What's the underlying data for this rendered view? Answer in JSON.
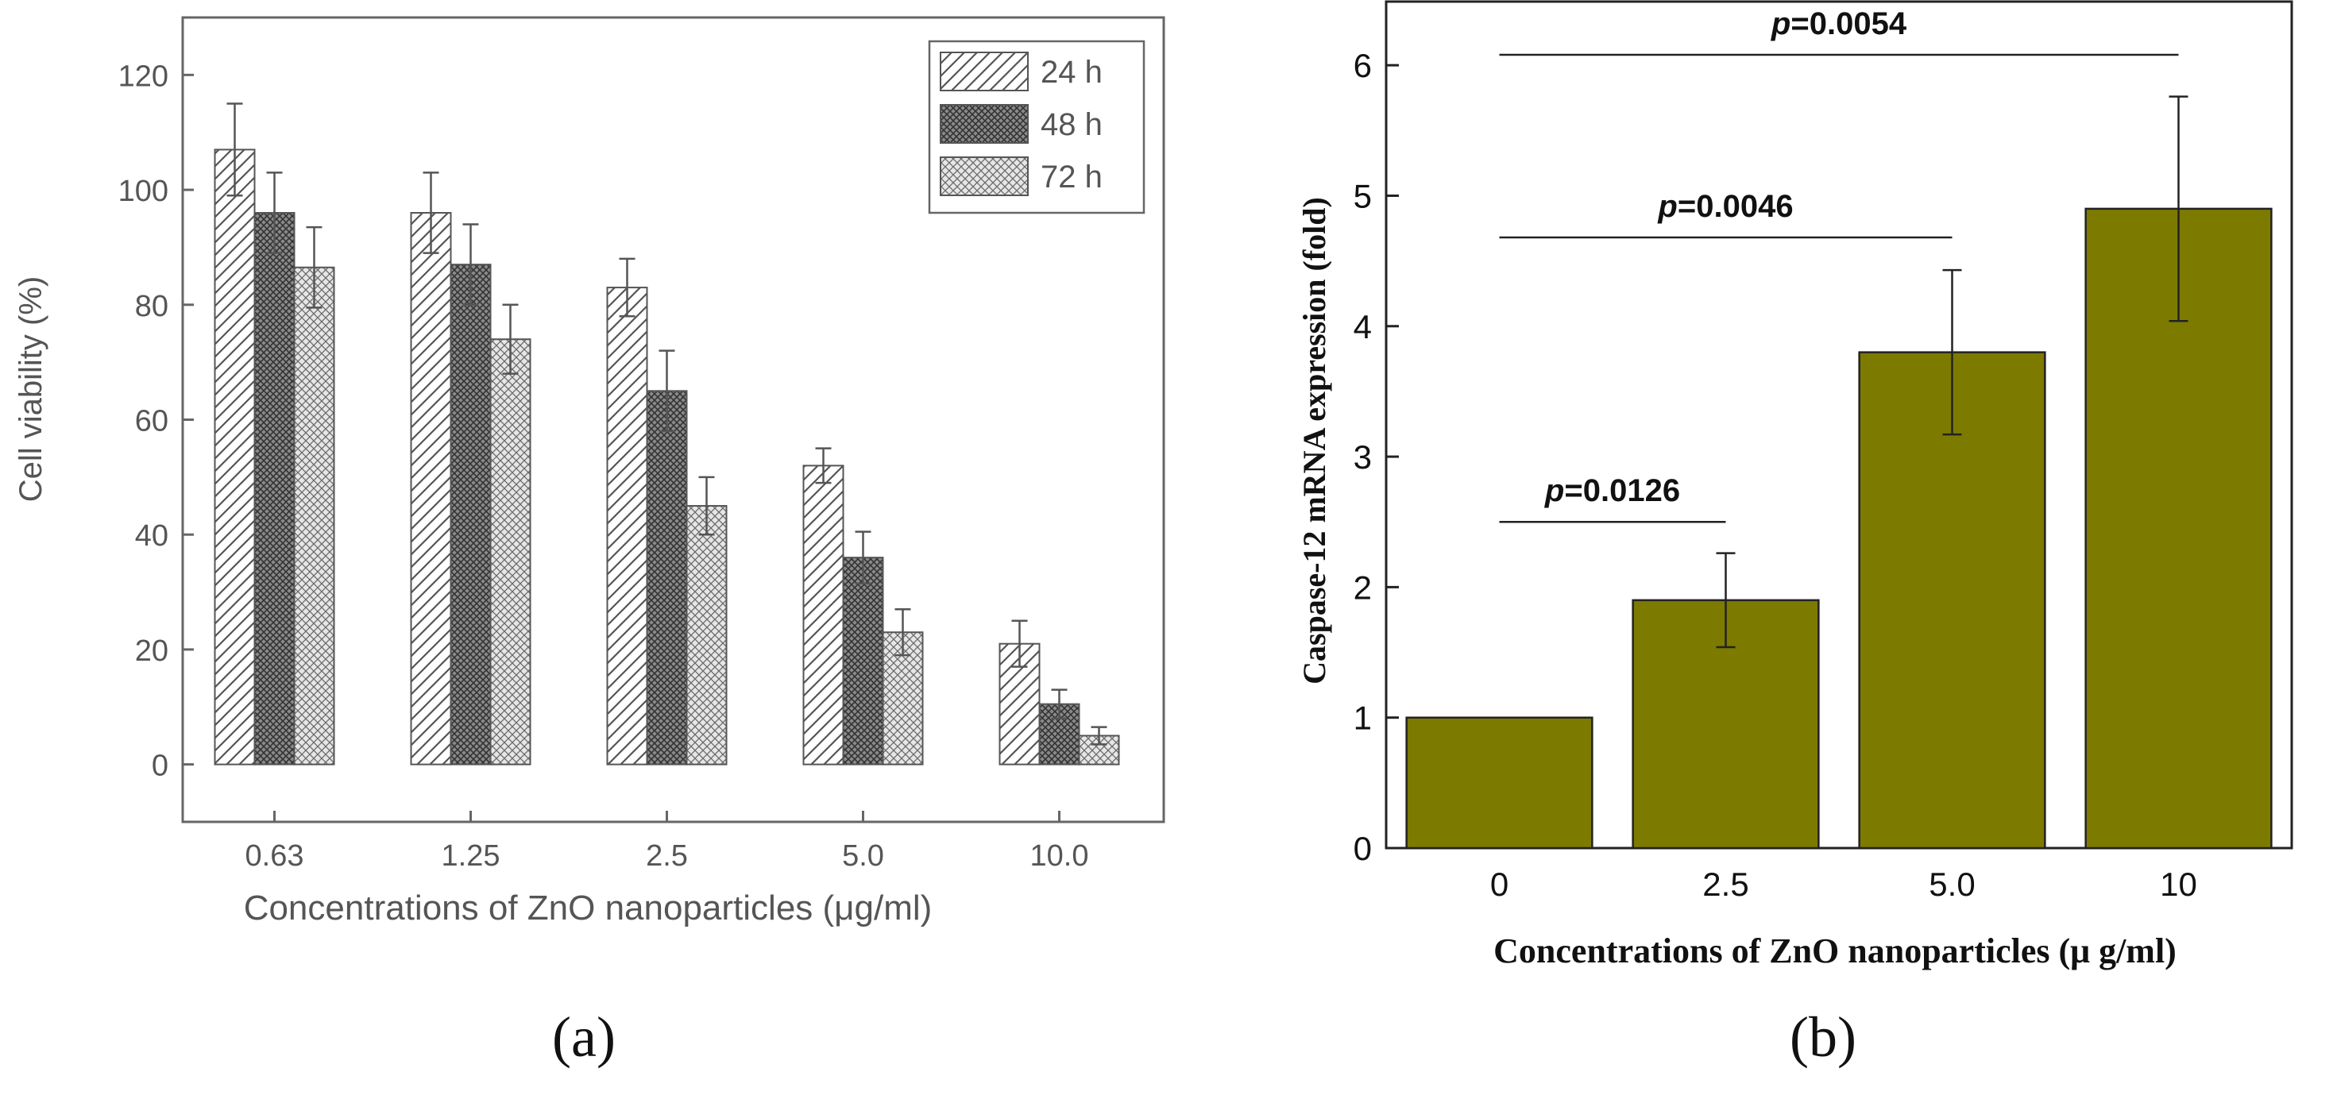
{
  "chart_data": [
    {
      "type": "bar",
      "title": "",
      "xlabel": "Concentrations of ZnO nanoparticles (μg/ml)",
      "ylabel": "Cell viability (%)",
      "ylim": [
        -10,
        130
      ],
      "yticks": [
        0,
        20,
        40,
        60,
        80,
        100,
        120
      ],
      "categories": [
        "0.63",
        "1.25",
        "2.5",
        "5.0",
        "10.0"
      ],
      "series": [
        {
          "name": "24 h",
          "pattern": "diagonal-hatch",
          "values": [
            107,
            96,
            83,
            52,
            21
          ],
          "errors": [
            8,
            7,
            5,
            3,
            4
          ]
        },
        {
          "name": "48 h",
          "pattern": "dense-crosshatch",
          "values": [
            96,
            87,
            65,
            36,
            10.5
          ],
          "errors": [
            7,
            7,
            7,
            4.5,
            2.5
          ]
        },
        {
          "name": "72 h",
          "pattern": "light-crosshatch",
          "values": [
            86.5,
            74,
            45,
            23,
            5
          ],
          "errors": [
            7,
            6,
            5,
            4,
            1.5
          ]
        }
      ],
      "legend": "top-right",
      "panel_label": "(a)"
    },
    {
      "type": "bar",
      "title": "",
      "xlabel": "Concentrations of ZnO nanoparticles (μ g/ml)",
      "ylabel": "Caspase-12 mRNA expression (fold)",
      "ylim": [
        0,
        6.5
      ],
      "yticks": [
        0,
        1,
        2,
        3,
        4,
        5,
        6
      ],
      "categories": [
        "0",
        "2.5",
        "5.0",
        "10"
      ],
      "values": [
        1.0,
        1.9,
        3.8,
        4.9
      ],
      "errors": [
        0,
        0.36,
        0.63,
        0.86
      ],
      "bar_color": "#7d7a00",
      "annotations": [
        {
          "p_prefix": "p",
          "text": "=0.0126",
          "from": 0,
          "to": 1,
          "level": 2.5
        },
        {
          "p_prefix": "p",
          "text": "=0.0046",
          "from": 0,
          "to": 2,
          "level": 4.68
        },
        {
          "p_prefix": "p",
          "text": "=0.0054",
          "from": 0,
          "to": 3,
          "level": 6.08
        }
      ],
      "panel_label": "(b)"
    }
  ]
}
